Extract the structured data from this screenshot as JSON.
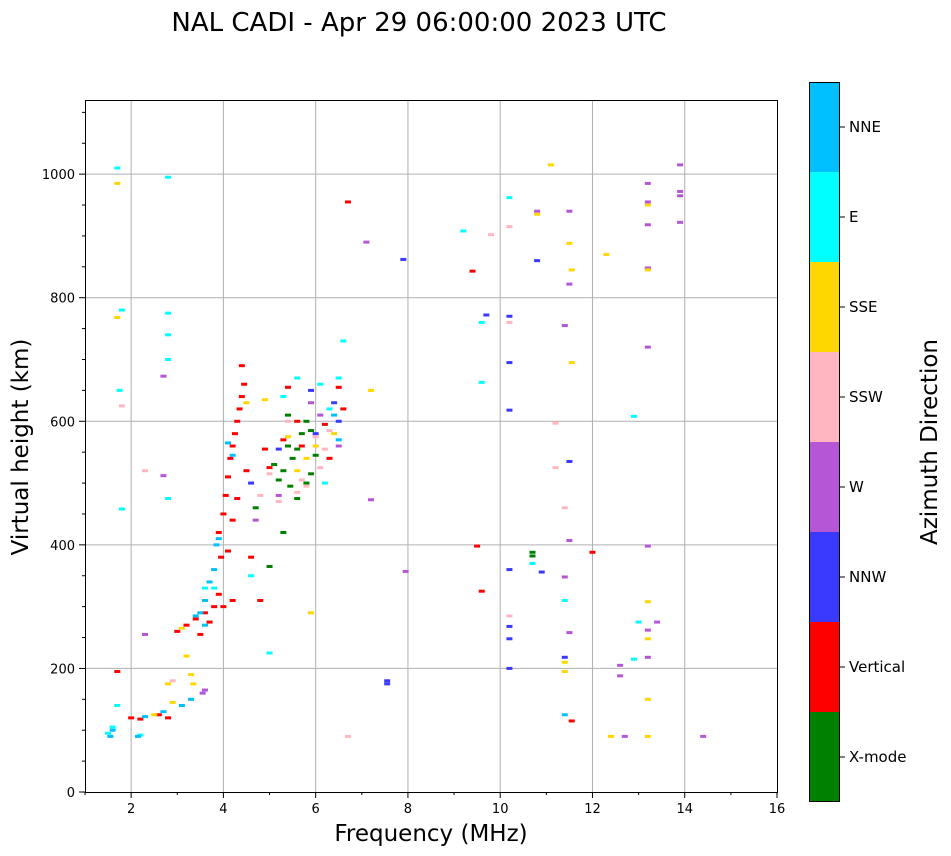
{
  "chart_data": {
    "type": "scatter",
    "title": "NAL CADI - Apr 29 06:00:00 2023 UTC",
    "xlabel": "Frequency (MHz)",
    "ylabel": "Virtual height (km)",
    "xlim": [
      1,
      16
    ],
    "ylim": [
      0,
      1120
    ],
    "xticks": [
      2,
      4,
      6,
      8,
      10,
      12,
      14,
      16
    ],
    "yticks": [
      0,
      200,
      400,
      600,
      800,
      1000
    ],
    "grid": true,
    "colorbar": {
      "label": "Azimuth Direction",
      "categories": [
        {
          "name": "X-mode",
          "color": "#008000"
        },
        {
          "name": "Vertical",
          "color": "#ff0000"
        },
        {
          "name": "NNW",
          "color": "#3a3aff"
        },
        {
          "name": "W",
          "color": "#b556d6"
        },
        {
          "name": "SSW",
          "color": "#ffb6c1"
        },
        {
          "name": "SSE",
          "color": "#ffd700"
        },
        {
          "name": "E",
          "color": "#00ffff"
        },
        {
          "name": "NNE",
          "color": "#00bfff"
        }
      ]
    },
    "series": [
      {
        "name": "X-mode",
        "points": [
          [
            5.1,
            530
          ],
          [
            5.3,
            520
          ],
          [
            5.4,
            560
          ],
          [
            5.5,
            540
          ],
          [
            5.6,
            555
          ],
          [
            5.7,
            580
          ],
          [
            5.8,
            600
          ],
          [
            5.9,
            585
          ],
          [
            5.45,
            495
          ],
          [
            5.2,
            505
          ],
          [
            5.8,
            500
          ],
          [
            6.0,
            545
          ],
          [
            5.3,
            420
          ],
          [
            4.7,
            460
          ],
          [
            5.0,
            365
          ],
          [
            5.4,
            610
          ],
          [
            10.7,
            388
          ],
          [
            10.7,
            382
          ],
          [
            5.6,
            475
          ],
          [
            5.9,
            515
          ]
        ]
      },
      {
        "name": "Vertical",
        "points": [
          [
            2.0,
            120
          ],
          [
            2.2,
            118
          ],
          [
            2.6,
            125
          ],
          [
            2.8,
            120
          ],
          [
            3.0,
            260
          ],
          [
            3.2,
            270
          ],
          [
            3.4,
            280
          ],
          [
            3.5,
            255
          ],
          [
            3.6,
            290
          ],
          [
            3.7,
            275
          ],
          [
            3.8,
            300
          ],
          [
            3.9,
            320
          ],
          [
            4.0,
            300
          ],
          [
            4.2,
            310
          ],
          [
            3.95,
            380
          ],
          [
            3.9,
            420
          ],
          [
            4.0,
            450
          ],
          [
            4.05,
            480
          ],
          [
            4.1,
            510
          ],
          [
            4.15,
            540
          ],
          [
            4.2,
            560
          ],
          [
            4.25,
            580
          ],
          [
            4.3,
            600
          ],
          [
            4.35,
            620
          ],
          [
            4.4,
            640
          ],
          [
            4.45,
            660
          ],
          [
            4.4,
            690
          ],
          [
            4.2,
            440
          ],
          [
            4.3,
            475
          ],
          [
            4.1,
            390
          ],
          [
            4.6,
            380
          ],
          [
            4.8,
            310
          ],
          [
            4.5,
            520
          ],
          [
            4.9,
            555
          ],
          [
            5.3,
            570
          ],
          [
            5.6,
            600
          ],
          [
            6.2,
            595
          ],
          [
            6.6,
            620
          ],
          [
            6.5,
            655
          ],
          [
            6.7,
            955
          ],
          [
            6.3,
            540
          ],
          [
            5.7,
            560
          ],
          [
            5.0,
            525
          ],
          [
            9.5,
            398
          ],
          [
            9.6,
            325
          ],
          [
            9.4,
            843
          ],
          [
            11.55,
            115
          ],
          [
            12.0,
            388
          ],
          [
            13.2,
            848
          ],
          [
            5.4,
            655
          ],
          [
            1.7,
            195
          ]
        ]
      },
      {
        "name": "NNW",
        "points": [
          [
            7.55,
            175
          ],
          [
            7.55,
            180
          ],
          [
            9.7,
            772
          ],
          [
            10.2,
            770
          ],
          [
            10.2,
            695
          ],
          [
            10.2,
            618
          ],
          [
            10.2,
            360
          ],
          [
            10.2,
            268
          ],
          [
            10.2,
            248
          ],
          [
            10.2,
            200
          ],
          [
            10.8,
            860
          ],
          [
            10.9,
            356
          ],
          [
            11.4,
            218
          ],
          [
            11.5,
            535
          ],
          [
            7.9,
            862
          ],
          [
            6.4,
            630
          ],
          [
            6.5,
            600
          ],
          [
            6.0,
            580
          ],
          [
            4.6,
            500
          ],
          [
            5.2,
            555
          ],
          [
            5.9,
            650
          ]
        ]
      },
      {
        "name": "W",
        "points": [
          [
            2.7,
            673
          ],
          [
            2.7,
            512
          ],
          [
            2.3,
            255
          ],
          [
            3.6,
            165
          ],
          [
            3.55,
            160
          ],
          [
            6.5,
            560
          ],
          [
            6.1,
            610
          ],
          [
            4.7,
            440
          ],
          [
            5.2,
            480
          ],
          [
            5.9,
            630
          ],
          [
            7.1,
            890
          ],
          [
            7.2,
            473
          ],
          [
            7.95,
            357
          ],
          [
            10.8,
            940
          ],
          [
            11.5,
            940
          ],
          [
            11.5,
            822
          ],
          [
            11.4,
            755
          ],
          [
            11.5,
            407
          ],
          [
            11.4,
            348
          ],
          [
            11.5,
            258
          ],
          [
            12.6,
            205
          ],
          [
            12.6,
            188
          ],
          [
            13.2,
            985
          ],
          [
            13.2,
            955
          ],
          [
            13.2,
            918
          ],
          [
            13.2,
            848
          ],
          [
            13.2,
            720
          ],
          [
            13.2,
            398
          ],
          [
            13.2,
            262
          ],
          [
            13.2,
            218
          ],
          [
            13.4,
            275
          ],
          [
            13.9,
            1015
          ],
          [
            13.9,
            972
          ],
          [
            13.9,
            965
          ],
          [
            13.9,
            922
          ],
          [
            14.4,
            90
          ],
          [
            12.7,
            90
          ]
        ]
      },
      {
        "name": "SSW",
        "points": [
          [
            2.3,
            520
          ],
          [
            2.9,
            180
          ],
          [
            4.8,
            480
          ],
          [
            5.0,
            515
          ],
          [
            5.2,
            470
          ],
          [
            5.6,
            485
          ],
          [
            5.8,
            495
          ],
          [
            6.0,
            575
          ],
          [
            6.2,
            555
          ],
          [
            6.3,
            585
          ],
          [
            6.1,
            525
          ],
          [
            5.7,
            505
          ],
          [
            5.4,
            600
          ],
          [
            6.7,
            90
          ],
          [
            9.8,
            902
          ],
          [
            10.2,
            915
          ],
          [
            10.2,
            760
          ],
          [
            10.2,
            285
          ],
          [
            11.2,
            597
          ],
          [
            11.2,
            525
          ],
          [
            11.4,
            460
          ],
          [
            1.8,
            625
          ]
        ]
      },
      {
        "name": "SSE",
        "points": [
          [
            2.5,
            125
          ],
          [
            2.8,
            175
          ],
          [
            2.9,
            145
          ],
          [
            3.3,
            190
          ],
          [
            3.35,
            175
          ],
          [
            3.2,
            220
          ],
          [
            3.1,
            265
          ],
          [
            4.5,
            630
          ],
          [
            4.9,
            635
          ],
          [
            5.4,
            575
          ],
          [
            5.6,
            520
          ],
          [
            5.8,
            540
          ],
          [
            6.0,
            560
          ],
          [
            6.4,
            580
          ],
          [
            7.2,
            650
          ],
          [
            5.9,
            290
          ],
          [
            10.8,
            935
          ],
          [
            11.1,
            1015
          ],
          [
            11.5,
            888
          ],
          [
            11.55,
            845
          ],
          [
            11.55,
            695
          ],
          [
            11.4,
            210
          ],
          [
            11.4,
            195
          ],
          [
            12.3,
            870
          ],
          [
            12.4,
            90
          ],
          [
            13.2,
            950
          ],
          [
            13.2,
            845
          ],
          [
            13.2,
            308
          ],
          [
            13.2,
            248
          ],
          [
            13.2,
            150
          ],
          [
            13.2,
            90
          ],
          [
            1.7,
            768
          ],
          [
            1.7,
            985
          ]
        ]
      },
      {
        "name": "E",
        "points": [
          [
            1.5,
            95
          ],
          [
            1.6,
            105
          ],
          [
            1.7,
            140
          ],
          [
            1.8,
            780
          ],
          [
            1.75,
            650
          ],
          [
            2.8,
            775
          ],
          [
            2.8,
            740
          ],
          [
            2.8,
            700
          ],
          [
            2.8,
            995
          ],
          [
            2.8,
            475
          ],
          [
            1.7,
            1010
          ],
          [
            4.6,
            350
          ],
          [
            5.0,
            225
          ],
          [
            5.3,
            640
          ],
          [
            5.6,
            670
          ],
          [
            6.1,
            660
          ],
          [
            6.3,
            620
          ],
          [
            6.5,
            670
          ],
          [
            6.6,
            730
          ],
          [
            6.2,
            500
          ],
          [
            3.8,
            330
          ],
          [
            3.6,
            330
          ],
          [
            9.2,
            908
          ],
          [
            9.6,
            760
          ],
          [
            9.6,
            663
          ],
          [
            10.2,
            962
          ],
          [
            10.7,
            370
          ],
          [
            11.4,
            310
          ],
          [
            12.9,
            215
          ],
          [
            12.9,
            608
          ],
          [
            13.0,
            275
          ],
          [
            2.2,
            92
          ],
          [
            1.8,
            458
          ]
        ]
      },
      {
        "name": "NNE",
        "points": [
          [
            1.55,
            90
          ],
          [
            1.6,
            100
          ],
          [
            2.3,
            122
          ],
          [
            2.7,
            130
          ],
          [
            3.1,
            140
          ],
          [
            3.3,
            150
          ],
          [
            3.5,
            290
          ],
          [
            3.6,
            310
          ],
          [
            3.7,
            340
          ],
          [
            3.8,
            360
          ],
          [
            3.85,
            400
          ],
          [
            3.9,
            410
          ],
          [
            3.6,
            270
          ],
          [
            3.4,
            285
          ],
          [
            4.1,
            565
          ],
          [
            4.2,
            545
          ],
          [
            6.4,
            610
          ],
          [
            6.5,
            570
          ],
          [
            2.15,
            90
          ],
          [
            11.4,
            125
          ]
        ]
      }
    ]
  }
}
